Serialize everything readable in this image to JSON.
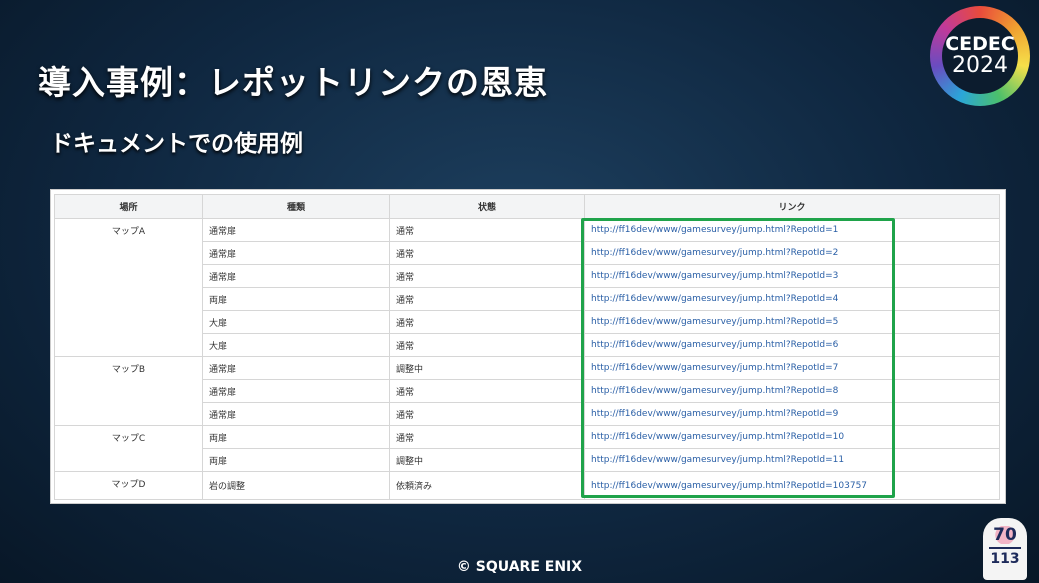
{
  "title": "導入事例：レポットリンクの恩恵",
  "subtitle": "ドキュメントでの使用例",
  "logo": {
    "name": "CEDEC",
    "year": "2024"
  },
  "table": {
    "headers": [
      "場所",
      "種類",
      "状態",
      "リンク"
    ],
    "groups": [
      {
        "location": "マップA",
        "rows": [
          {
            "type": "通常扉",
            "status": "通常",
            "link": "http://ff16dev/www/gamesurvey/jump.html?RepotId=1"
          },
          {
            "type": "通常扉",
            "status": "通常",
            "link": "http://ff16dev/www/gamesurvey/jump.html?RepotId=2"
          },
          {
            "type": "通常扉",
            "status": "通常",
            "link": "http://ff16dev/www/gamesurvey/jump.html?RepotId=3"
          },
          {
            "type": "両扉",
            "status": "通常",
            "link": "http://ff16dev/www/gamesurvey/jump.html?RepotId=4"
          },
          {
            "type": "大扉",
            "status": "通常",
            "link": "http://ff16dev/www/gamesurvey/jump.html?RepotId=5"
          },
          {
            "type": "大扉",
            "status": "通常",
            "link": "http://ff16dev/www/gamesurvey/jump.html?RepotId=6"
          }
        ]
      },
      {
        "location": "マップB",
        "rows": [
          {
            "type": "通常扉",
            "status": "調整中",
            "link": "http://ff16dev/www/gamesurvey/jump.html?RepotId=7"
          },
          {
            "type": "通常扉",
            "status": "通常",
            "link": "http://ff16dev/www/gamesurvey/jump.html?RepotId=8"
          },
          {
            "type": "通常扉",
            "status": "通常",
            "link": "http://ff16dev/www/gamesurvey/jump.html?RepotId=9"
          }
        ]
      },
      {
        "location": "マップC",
        "rows": [
          {
            "type": "両扉",
            "status": "通常",
            "link": "http://ff16dev/www/gamesurvey/jump.html?RepotId=10"
          },
          {
            "type": "両扉",
            "status": "調整中",
            "link": "http://ff16dev/www/gamesurvey/jump.html?RepotId=11"
          }
        ]
      },
      {
        "location": "マップD",
        "rows": [
          {
            "type": "岩の調整",
            "status": "依頼済み",
            "link": "http://ff16dev/www/gamesurvey/jump.html?RepotId=103757"
          }
        ]
      }
    ]
  },
  "highlight_color": "#1fa34a",
  "copyright": "© SQUARE ENIX",
  "page": {
    "current": "70",
    "total": "113"
  }
}
